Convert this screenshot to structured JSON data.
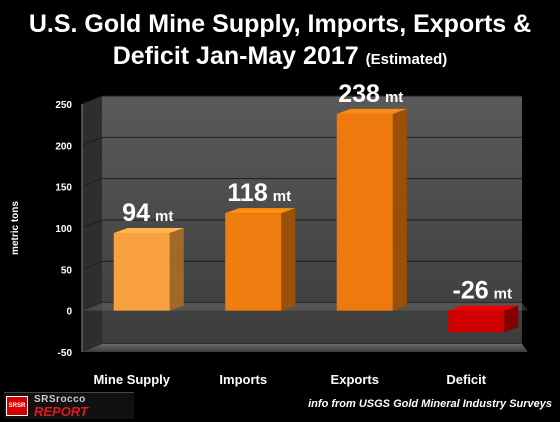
{
  "title": {
    "line1": "U.S. Gold Mine Supply, Imports, Exports &",
    "line2": "Deficit Jan-May 2017",
    "paren": "(Estimated)"
  },
  "chart_data": {
    "type": "bar",
    "categories": [
      "Mine Supply",
      "Imports",
      "Exports",
      "Deficit"
    ],
    "values": [
      94,
      118,
      238,
      -26
    ],
    "data_labels": [
      "94",
      "118",
      "238",
      "-26"
    ],
    "unit_label": "mt",
    "ylabel": "metric tons",
    "ylim": [
      -50,
      250
    ],
    "yticks": [
      "250",
      "200",
      "150",
      "100",
      "50",
      "0",
      "-50"
    ],
    "grid": true,
    "colors": {
      "Mine Supply": "#f9a040",
      "Imports": "#f07d10",
      "Exports": "#ee7a0e",
      "Deficit": "#d00000"
    }
  },
  "source": "info from USGS Gold Mineral Industry Surveys",
  "logo": {
    "line1": "SRSrocco",
    "line2": "REPORT",
    "badge": "SRSR"
  }
}
